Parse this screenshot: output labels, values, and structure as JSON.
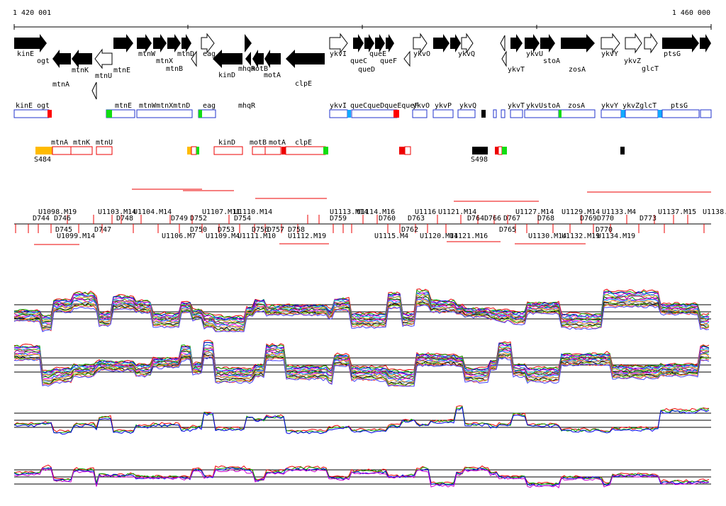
{
  "coords": {
    "left": "1 420 001",
    "right": "1 460 000"
  },
  "genes_top": [
    "kinE",
    "mtnW",
    "mtnD",
    "eag",
    "ykvI",
    "queE",
    "ykvO",
    "ykvQ",
    "ykvU",
    "ykvY",
    "ptsG"
  ],
  "genes_mid": [
    "ogt",
    "mtnK",
    "mtnE",
    "mtnX",
    "kinD",
    "mhqR",
    "ykvZ",
    "queC",
    "queF",
    "stoA",
    "glcT"
  ],
  "genes_low": [
    "mtnA",
    "mtnU",
    "mtnB",
    "motB",
    "motA",
    "clpE",
    "queD",
    "ykvT",
    "zosA"
  ],
  "annot_labels": [
    "kinE",
    "ogt",
    "mtnE",
    "mtnWmtnXmtnD",
    "eag",
    "mhqR",
    "ykvI",
    "queCqueDqueEqueF",
    "ykvO",
    "ykvP",
    "ykvQ",
    "ykvT",
    "ykvUstoA",
    "zosA",
    "ykvY",
    "ykvZglcT",
    "ptsG"
  ],
  "reg_labels": [
    "mtnA",
    "mtnK",
    "mtnU",
    "kinD",
    "motB",
    "motA",
    "clpE"
  ],
  "reg_sites": [
    "S484",
    "S498"
  ],
  "probes_above": [
    "U1098.M19",
    "U1103.M14",
    "U1104.M14",
    "U1107.M11",
    "U1110.M14",
    "U1113.M14",
    "U1114.M16",
    "U1116",
    "U1121.M14",
    "U1127.M14",
    "U1129.M14",
    "U1133.M4",
    "U1137.M15",
    "U1138."
  ],
  "probes_upper": [
    "D744",
    "D746",
    "D748",
    "D749",
    "D752",
    "D754",
    "D759",
    "D760",
    "D763",
    "D764",
    "D766",
    "D767",
    "D768",
    "D769",
    "D770",
    "D773"
  ],
  "probes_lower": [
    "D745",
    "D747",
    "D750",
    "D753",
    "D756",
    "D757",
    "D758",
    "D762",
    "D765",
    "D770"
  ],
  "probes_below": [
    "U1099.M14",
    "U1106.M7",
    "U1109.M4",
    "U1111.M10",
    "U1112.M19",
    "U1115.M4",
    "U1120.M14",
    "U1121.M16",
    "U1130.M14",
    "U1132.M19",
    "U1134.M19"
  ]
}
